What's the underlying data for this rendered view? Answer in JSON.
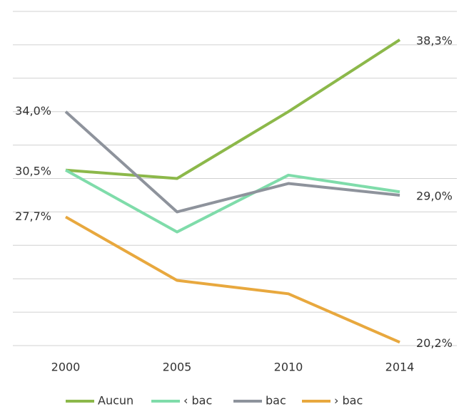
{
  "chart_data": {
    "type": "line",
    "categories": [
      "2000",
      "2005",
      "2010",
      "2014"
    ],
    "series": [
      {
        "name": "Aucun",
        "color": "#8cb84a",
        "values": [
          30.5,
          30.0,
          34.0,
          38.3
        ],
        "value_labels": [
          "30,5%",
          null,
          null,
          "38,3%"
        ]
      },
      {
        "name": "‹ bac",
        "color": "#7fdcaa",
        "values": [
          30.5,
          26.8,
          30.2,
          29.2
        ]
      },
      {
        "name": "bac",
        "color": "#8e939c",
        "values": [
          34.0,
          28.0,
          29.7,
          29.0
        ],
        "value_labels": [
          "34,0%",
          null,
          null,
          "29,0%"
        ]
      },
      {
        "name": "› bac",
        "color": "#e8a83e",
        "values": [
          27.7,
          23.9,
          23.1,
          20.2
        ],
        "value_labels": [
          "27,7%",
          null,
          null,
          "20,2%"
        ]
      }
    ],
    "ylim": [
      20,
      40
    ],
    "yticks": [
      20,
      22,
      24,
      26,
      28,
      30,
      32,
      34,
      36,
      38,
      40
    ],
    "grid": true
  }
}
